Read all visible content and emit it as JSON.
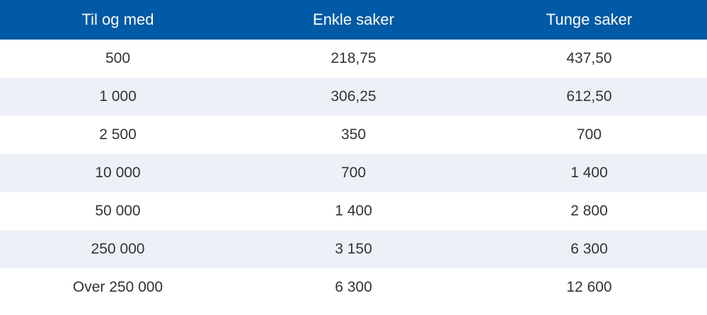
{
  "table": {
    "headers": [
      "Til og med",
      "Enkle saker",
      "Tunge saker"
    ],
    "rows": [
      [
        "500",
        "218,75",
        "437,50"
      ],
      [
        "1 000",
        "306,25",
        "612,50"
      ],
      [
        "2 500",
        "350",
        "700"
      ],
      [
        "10 000",
        "700",
        "1 400"
      ],
      [
        "50 000",
        "1 400",
        "2 800"
      ],
      [
        "250 000",
        "3 150",
        "6 300"
      ],
      [
        "Over 250 000",
        "6 300",
        "12 600"
      ]
    ]
  },
  "colors": {
    "header_background": "#005aa5",
    "header_text": "#ffffff",
    "stripe_background": "#edf1f7",
    "body_text": "#333333"
  }
}
